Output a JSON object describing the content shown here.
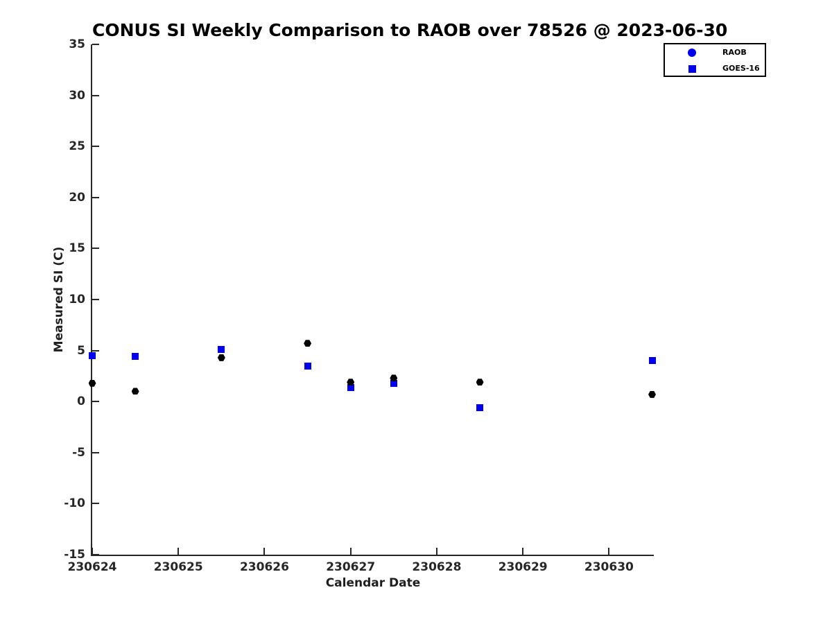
{
  "chart_data": {
    "type": "scatter",
    "title": "CONUS SI Weekly Comparison to RAOB over 78526 @ 2023-06-30",
    "xlabel": "Calendar Date",
    "ylabel": "Measured SI (C)",
    "xlim": [
      230624,
      230630.52
    ],
    "ylim": [
      -15,
      35
    ],
    "grid": false,
    "x_ticks": [
      {
        "value": 230624,
        "label": "230624"
      },
      {
        "value": 230625,
        "label": "230625"
      },
      {
        "value": 230626,
        "label": "230626"
      },
      {
        "value": 230627,
        "label": "230627"
      },
      {
        "value": 230628,
        "label": "230628"
      },
      {
        "value": 230629,
        "label": "230629"
      },
      {
        "value": 230630,
        "label": "230630"
      }
    ],
    "y_ticks": [
      {
        "value": 35,
        "label": "35"
      },
      {
        "value": 30,
        "label": "30"
      },
      {
        "value": 25,
        "label": "25"
      },
      {
        "value": 20,
        "label": "20"
      },
      {
        "value": 15,
        "label": "15"
      },
      {
        "value": 10,
        "label": "10"
      },
      {
        "value": 5,
        "label": "5"
      },
      {
        "value": 0,
        "label": "0"
      },
      {
        "value": -5,
        "label": "-5"
      },
      {
        "value": -10,
        "label": "-10"
      },
      {
        "value": -15,
        "label": "-15"
      }
    ],
    "legend": {
      "position": "top-right"
    },
    "series": [
      {
        "name": "GOES-16",
        "marker": "square",
        "color": "#0000ee",
        "legend_marker": "square",
        "legend_color": "#0000ee",
        "points": [
          [
            230624.0,
            4.5
          ],
          [
            230624.5,
            4.4
          ],
          [
            230625.5,
            5.1
          ],
          [
            230626.5,
            3.5
          ],
          [
            230627.0,
            1.4
          ],
          [
            230627.5,
            1.8
          ],
          [
            230628.5,
            -0.6
          ],
          [
            230630.5,
            4.0
          ]
        ]
      },
      {
        "name": "RAOB",
        "marker": "hexagon",
        "color": "#000000",
        "legend_marker": "circle",
        "legend_color": "#0000ee",
        "points": [
          [
            230624.0,
            1.8
          ],
          [
            230624.5,
            1.0
          ],
          [
            230625.5,
            4.3
          ],
          [
            230626.5,
            5.7
          ],
          [
            230627.0,
            1.9
          ],
          [
            230627.5,
            2.3
          ],
          [
            230628.5,
            1.9
          ],
          [
            230630.5,
            0.7
          ]
        ]
      }
    ],
    "legend_order": [
      "RAOB",
      "GOES-16"
    ]
  },
  "colors": {
    "series_blue": "#0000ee",
    "series_black": "#000000",
    "axis": "#262626",
    "title_text": "#000000"
  }
}
